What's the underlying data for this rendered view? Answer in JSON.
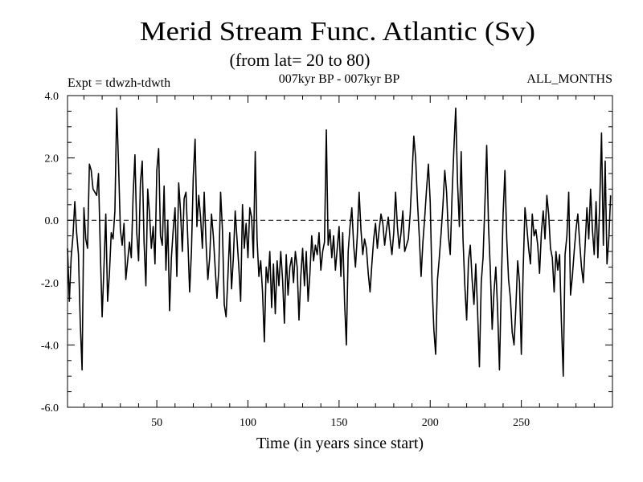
{
  "chart_data": {
    "type": "line",
    "title": "Merid Stream Func. Atlantic (Sv)",
    "subtitle": "(from lat= 20 to 80)",
    "annotation_left": "Expt = tdwzh-tdwth",
    "annotation_center": "007kyr BP - 007kyr BP",
    "annotation_right": "ALL_MONTHS",
    "xlabel": "Time (in years since start)",
    "ylabel": "",
    "xlim": [
      1,
      300
    ],
    "ylim": [
      -6.0,
      4.0
    ],
    "x_ticks": [
      50,
      100,
      150,
      200,
      250
    ],
    "x_tick_labels": [
      "50",
      "100",
      "150",
      "200",
      "250"
    ],
    "y_ticks": [
      -6.0,
      -4.0,
      -2.0,
      0.0,
      2.0,
      4.0
    ],
    "y_tick_labels": [
      "-6.0",
      "-4.0",
      "-2.0",
      "0.0",
      "2.0",
      "4.0"
    ],
    "reference_line": {
      "y": 0.0,
      "style": "dashed"
    },
    "grid": false,
    "series": [
      {
        "x_start": 1,
        "x_step": 1,
        "values": [
          -0.9,
          -2.6,
          -1.2,
          -0.5,
          0.6,
          -0.4,
          -1.1,
          -3.3,
          -4.8,
          0.4,
          -0.6,
          -0.9,
          1.8,
          1.6,
          1.0,
          0.9,
          0.8,
          1.5,
          -1.0,
          -3.1,
          -1.5,
          0.2,
          -2.6,
          -1.7,
          -0.4,
          -0.6,
          0.3,
          3.6,
          1.8,
          -0.3,
          -0.8,
          -0.1,
          -1.9,
          -1.3,
          -0.7,
          -1.2,
          0.8,
          2.1,
          -0.4,
          -1.3,
          1.2,
          1.9,
          -0.7,
          -2.1,
          1.0,
          0.2,
          -0.9,
          -0.2,
          -1.4,
          1.6,
          2.3,
          -0.5,
          -0.8,
          1.1,
          -1.6,
          0.0,
          -2.9,
          -1.2,
          -0.3,
          0.4,
          -1.8,
          1.2,
          0.3,
          -1.0,
          0.7,
          0.9,
          -0.6,
          -2.3,
          -1.0,
          1.4,
          2.6,
          -0.2,
          0.8,
          0.1,
          -0.9,
          0.9,
          -0.7,
          -1.9,
          -1.2,
          0.2,
          -0.5,
          -1.5,
          -2.5,
          -1.6,
          0.9,
          -0.3,
          -2.7,
          -3.1,
          -1.8,
          -0.4,
          -2.2,
          -1.2,
          0.3,
          -0.6,
          -1.5,
          -2.6,
          0.5,
          -0.9,
          -0.1,
          -1.2,
          0.4,
          0.1,
          -1.2,
          2.2,
          -0.6,
          -1.8,
          -1.3,
          -2.3,
          -3.9,
          -1.5,
          -2.0,
          -1.0,
          -2.8,
          -1.4,
          -3.0,
          -1.3,
          -2.1,
          -1.0,
          -1.9,
          -3.3,
          -1.1,
          -2.4,
          -1.5,
          -1.2,
          -2.0,
          -1.0,
          -1.5,
          -3.2,
          -1.8,
          -0.9,
          -2.1,
          -1.0,
          -2.6,
          -1.7,
          -0.5,
          -1.3,
          -0.8,
          -1.1,
          -0.4,
          -1.6,
          -1.0,
          -0.7,
          2.9,
          -0.8,
          -0.3,
          -1.2,
          -0.5,
          -1.6,
          -0.9,
          -0.2,
          -1.8,
          -0.4,
          -2.6,
          -4.0,
          -1.0,
          -0.2,
          0.4,
          -0.8,
          -1.5,
          -0.5,
          0.9,
          -0.3,
          -1.1,
          -0.6,
          -0.9,
          -1.7,
          -2.3,
          -1.4,
          -0.6,
          -0.1,
          -0.9,
          -0.3,
          0.2,
          -0.1,
          -0.8,
          -0.3,
          0.1,
          -0.6,
          -1.1,
          -0.4,
          0.9,
          -0.2,
          -0.9,
          -0.4,
          0.3,
          -1.0,
          -0.8,
          -0.6,
          0.2,
          1.4,
          2.7,
          2.0,
          0.6,
          -0.5,
          -1.8,
          -0.7,
          0.1,
          1.0,
          1.8,
          0.6,
          -2.0,
          -3.5,
          -4.3,
          -1.9,
          -1.2,
          -0.4,
          0.5,
          1.6,
          0.9,
          -0.5,
          -1.1,
          0.8,
          2.3,
          3.6,
          1.2,
          -0.2,
          2.2,
          -0.6,
          -2.1,
          -3.2,
          -1.3,
          -0.8,
          -1.9,
          -2.7,
          -1.4,
          -2.9,
          -4.7,
          -2.0,
          -1.2,
          0.5,
          2.4,
          -0.2,
          -1.6,
          -3.5,
          -2.3,
          -1.5,
          -2.9,
          -4.8,
          -2.1,
          0.2,
          1.6,
          -0.6,
          -1.9,
          -2.5,
          -3.6,
          -4.0,
          -2.8,
          -1.3,
          -2.0,
          -4.3,
          -1.6,
          0.4,
          -0.2,
          -0.9,
          -1.4,
          0.2,
          -0.5,
          -0.3,
          -0.8,
          -1.7,
          -0.4,
          0.3,
          -0.6,
          0.8,
          0.2,
          -0.9,
          -1.2,
          -2.3,
          -1.0,
          -1.6,
          -1.1,
          -3.3,
          -5.0,
          -1.1,
          -0.5,
          0.9,
          -2.4,
          -1.8,
          -1.0,
          -0.3,
          0.2,
          -0.7,
          -1.5,
          -2.0,
          -0.8,
          0.4,
          -0.6,
          1.0,
          -0.3,
          -1.1,
          0.6,
          -1.2,
          0.5,
          2.8,
          -0.8,
          1.9,
          -1.4,
          -0.6,
          0.8
        ]
      }
    ]
  }
}
